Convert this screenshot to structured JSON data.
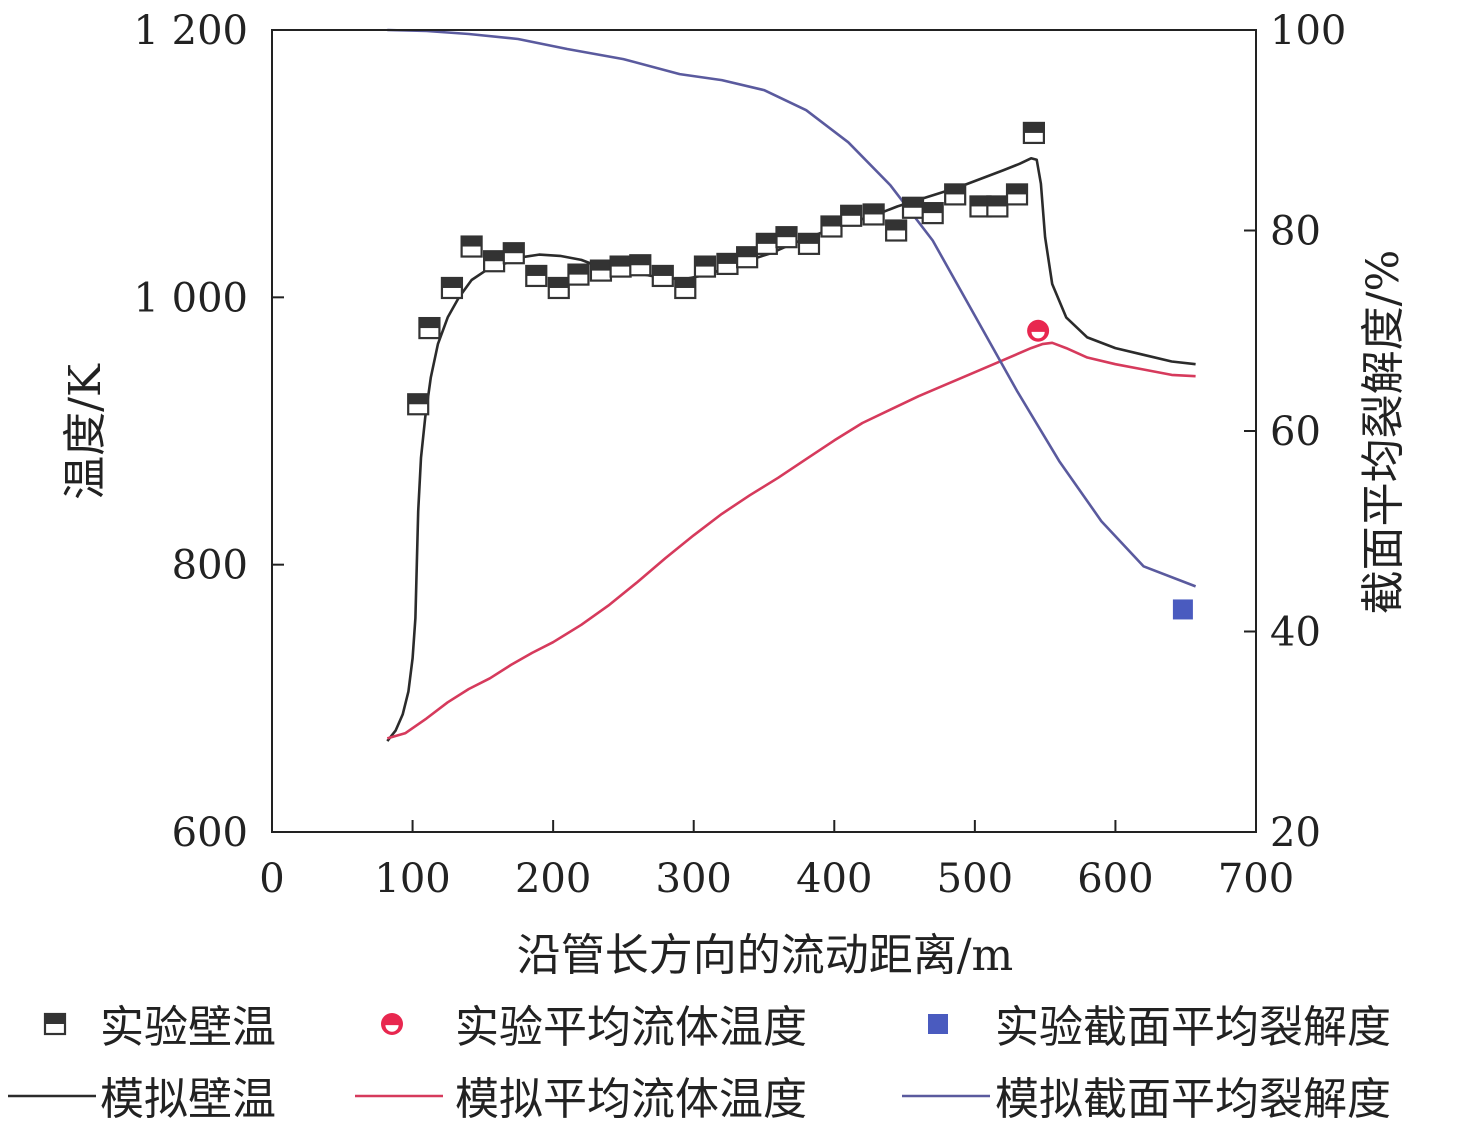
{
  "chart_data": {
    "type": "line",
    "xlabel": "沿管长方向的流动距离/m",
    "ylabel_left": "温度/K",
    "ylabel_right": "截面平均裂解度/%",
    "xlim": [
      0,
      700
    ],
    "ylim_left": [
      600,
      1200
    ],
    "ylim_right": [
      20,
      100
    ],
    "xticks": [
      0,
      100,
      200,
      300,
      400,
      500,
      600,
      700
    ],
    "yticks_left": [
      600,
      800,
      1000,
      1200
    ],
    "yticks_left_labels": [
      "600",
      "800",
      "1 000",
      "1 200"
    ],
    "yticks_right": [
      20,
      40,
      60,
      80,
      100
    ],
    "grid": false,
    "legend_placement": "bottom",
    "series": [
      {
        "name": "实验壁温",
        "kind": "scatter",
        "axis": "left",
        "color": "#333333",
        "marker": "half-square",
        "points": [
          [
            104,
            920
          ],
          [
            112,
            977
          ],
          [
            128,
            1007
          ],
          [
            142,
            1038
          ],
          [
            158,
            1027
          ],
          [
            172,
            1033
          ],
          [
            188,
            1016
          ],
          [
            204,
            1007
          ],
          [
            218,
            1017
          ],
          [
            234,
            1020
          ],
          [
            248,
            1023
          ],
          [
            262,
            1024
          ],
          [
            278,
            1016
          ],
          [
            294,
            1007
          ],
          [
            308,
            1023
          ],
          [
            324,
            1025
          ],
          [
            338,
            1030
          ],
          [
            352,
            1040
          ],
          [
            366,
            1045
          ],
          [
            382,
            1040
          ],
          [
            398,
            1053
          ],
          [
            412,
            1061
          ],
          [
            428,
            1062
          ],
          [
            444,
            1050
          ],
          [
            456,
            1067
          ],
          [
            470,
            1063
          ],
          [
            486,
            1077
          ],
          [
            504,
            1068
          ],
          [
            516,
            1068
          ],
          [
            530,
            1077
          ],
          [
            542,
            1123
          ]
        ]
      },
      {
        "name": "实验平均流体温度",
        "kind": "scatter",
        "axis": "left",
        "color": "#e8274f",
        "marker": "half-circle",
        "points": [
          [
            545,
            975
          ]
        ]
      },
      {
        "name": "实验截面平均裂解度",
        "kind": "scatter",
        "axis": "right",
        "color": "#4a5bbf",
        "marker": "square",
        "points": [
          [
            648,
            42.2
          ]
        ]
      },
      {
        "name": "模拟壁温",
        "kind": "line",
        "axis": "left",
        "color": "#2b2b2b",
        "points": [
          [
            82,
            668
          ],
          [
            88,
            676
          ],
          [
            93,
            688
          ],
          [
            97,
            705
          ],
          [
            100,
            730
          ],
          [
            102,
            760
          ],
          [
            103,
            800
          ],
          [
            104,
            840
          ],
          [
            106,
            880
          ],
          [
            109,
            910
          ],
          [
            113,
            940
          ],
          [
            118,
            965
          ],
          [
            125,
            985
          ],
          [
            133,
            1000
          ],
          [
            142,
            1013
          ],
          [
            152,
            1020
          ],
          [
            165,
            1025
          ],
          [
            178,
            1030
          ],
          [
            190,
            1032
          ],
          [
            205,
            1031
          ],
          [
            220,
            1028
          ],
          [
            235,
            1022
          ],
          [
            250,
            1017
          ],
          [
            265,
            1017
          ],
          [
            280,
            1014
          ],
          [
            295,
            1014
          ],
          [
            310,
            1017
          ],
          [
            325,
            1023
          ],
          [
            340,
            1028
          ],
          [
            355,
            1033
          ],
          [
            370,
            1040
          ],
          [
            385,
            1046
          ],
          [
            400,
            1052
          ],
          [
            415,
            1057
          ],
          [
            430,
            1062
          ],
          [
            445,
            1068
          ],
          [
            460,
            1073
          ],
          [
            475,
            1078
          ],
          [
            490,
            1083
          ],
          [
            505,
            1089
          ],
          [
            520,
            1095
          ],
          [
            532,
            1100
          ],
          [
            540,
            1104
          ],
          [
            544,
            1103
          ],
          [
            547,
            1085
          ],
          [
            550,
            1045
          ],
          [
            555,
            1010
          ],
          [
            565,
            985
          ],
          [
            580,
            970
          ],
          [
            600,
            962
          ],
          [
            620,
            957
          ],
          [
            640,
            952
          ],
          [
            657,
            950
          ]
        ]
      },
      {
        "name": "模拟平均流体温度",
        "kind": "line",
        "axis": "left",
        "color": "#d63a5c",
        "points": [
          [
            82,
            670
          ],
          [
            95,
            674
          ],
          [
            110,
            685
          ],
          [
            125,
            697
          ],
          [
            140,
            707
          ],
          [
            155,
            715
          ],
          [
            170,
            725
          ],
          [
            185,
            734
          ],
          [
            200,
            742
          ],
          [
            220,
            755
          ],
          [
            240,
            770
          ],
          [
            260,
            787
          ],
          [
            280,
            805
          ],
          [
            300,
            822
          ],
          [
            320,
            838
          ],
          [
            340,
            852
          ],
          [
            360,
            865
          ],
          [
            380,
            879
          ],
          [
            400,
            893
          ],
          [
            420,
            906
          ],
          [
            440,
            916
          ],
          [
            460,
            926
          ],
          [
            480,
            935
          ],
          [
            500,
            944
          ],
          [
            520,
            953
          ],
          [
            540,
            962
          ],
          [
            548,
            965
          ],
          [
            555,
            966
          ],
          [
            565,
            962
          ],
          [
            580,
            955
          ],
          [
            600,
            950
          ],
          [
            620,
            946
          ],
          [
            640,
            942
          ],
          [
            657,
            941
          ]
        ]
      },
      {
        "name": "模拟截面平均裂解度",
        "kind": "line",
        "axis": "right",
        "color": "#5a5a9e",
        "points": [
          [
            82,
            100
          ],
          [
            110,
            99.9
          ],
          [
            140,
            99.6
          ],
          [
            175,
            99.1
          ],
          [
            210,
            98.1
          ],
          [
            250,
            97.1
          ],
          [
            290,
            95.6
          ],
          [
            320,
            95.0
          ],
          [
            350,
            94.0
          ],
          [
            380,
            92.0
          ],
          [
            410,
            88.8
          ],
          [
            440,
            84.5
          ],
          [
            470,
            79.0
          ],
          [
            500,
            71.5
          ],
          [
            530,
            64.0
          ],
          [
            560,
            57.0
          ],
          [
            590,
            51.0
          ],
          [
            620,
            46.5
          ],
          [
            657,
            44.5
          ]
        ]
      }
    ]
  },
  "legend": [
    {
      "label": "实验壁温",
      "icon": "half-filled-square-icon",
      "color": "#333333"
    },
    {
      "label": "实验平均流体温度",
      "icon": "half-filled-circle-icon",
      "color": "#e8274f"
    },
    {
      "label": "实验截面平均裂解度",
      "icon": "filled-square-icon",
      "color": "#4a5bbf"
    },
    {
      "label": "模拟壁温",
      "icon": "line-icon",
      "color": "#2b2b2b"
    },
    {
      "label": "模拟平均流体温度",
      "icon": "line-icon",
      "color": "#d63a5c"
    },
    {
      "label": "模拟截面平均裂解度",
      "icon": "line-icon",
      "color": "#5a5a9e"
    }
  ]
}
